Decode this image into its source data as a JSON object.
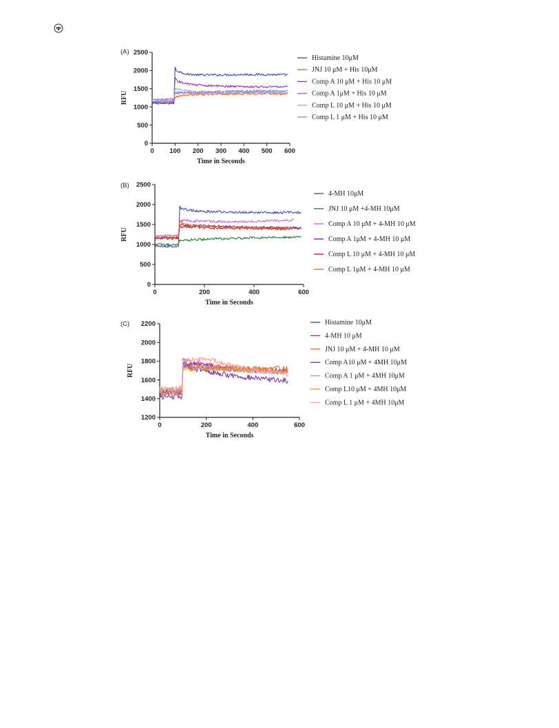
{
  "page": {
    "icon": "circle-page-marker-icon"
  },
  "chart_data": [
    {
      "type": "line",
      "panel_label": "(A)",
      "xlabel": "Time in Seconds",
      "ylabel": "RFU",
      "xlim": [
        0,
        600
      ],
      "ylim": [
        0,
        2500
      ],
      "xticks": [
        "0",
        "100",
        "200",
        "300",
        "400",
        "500",
        "600"
      ],
      "yticks": [
        "0",
        "500",
        "1000",
        "1500",
        "2000",
        "2500"
      ],
      "grid": false,
      "legend_position": "right",
      "series": [
        {
          "name": "Histamine 10μM",
          "color": "#3a4fa8",
          "x": [
            0,
            95,
            100,
            105,
            150,
            200,
            300,
            400,
            500,
            590
          ],
          "y": [
            1100,
            1100,
            2080,
            2000,
            1900,
            1880,
            1880,
            1890,
            1890,
            1880
          ]
        },
        {
          "name": "JNJ 10 μM + His 10μM",
          "color": "#f06a1d",
          "x": [
            0,
            95,
            100,
            150,
            200,
            300,
            400,
            500,
            590
          ],
          "y": [
            1150,
            1160,
            1280,
            1320,
            1340,
            1350,
            1360,
            1370,
            1350
          ]
        },
        {
          "name": "Comp A 10 μM + His 10 μM",
          "color": "#9b3aa8",
          "x": [
            0,
            95,
            100,
            110,
            150,
            200,
            300,
            400,
            500,
            590
          ],
          "y": [
            1110,
            1120,
            1820,
            1700,
            1640,
            1600,
            1570,
            1560,
            1550,
            1560
          ]
        },
        {
          "name": "Comp A 1μM + His 10 μM",
          "color": "#d24fa8",
          "x": [
            0,
            95,
            100,
            150,
            200,
            300,
            400,
            500,
            590
          ],
          "y": [
            1200,
            1210,
            1380,
            1390,
            1400,
            1420,
            1430,
            1440,
            1440
          ]
        },
        {
          "name": "Comp L 10 μM + His 10 μM",
          "color": "#7fb8e6",
          "x": [
            0,
            95,
            100,
            150,
            200,
            300,
            400,
            500,
            590
          ],
          "y": [
            1170,
            1180,
            1520,
            1450,
            1420,
            1410,
            1420,
            1420,
            1430
          ]
        },
        {
          "name": "Comp L 1 μM + His 10 μM",
          "color": "#8f8fd0",
          "x": [
            0,
            95,
            100,
            150,
            200,
            300,
            400,
            500,
            590
          ],
          "y": [
            1140,
            1150,
            1400,
            1390,
            1380,
            1380,
            1390,
            1390,
            1390
          ]
        }
      ]
    },
    {
      "type": "line",
      "panel_label": "(B)",
      "xlabel": "Time in Seconds",
      "ylabel": "RFU",
      "xlim": [
        0,
        600
      ],
      "ylim": [
        0,
        2500
      ],
      "xticks": [
        "0",
        "200",
        "400",
        "600"
      ],
      "yticks": [
        "0",
        "500",
        "1000",
        "1500",
        "2000",
        "2500"
      ],
      "grid": false,
      "legend_position": "right",
      "series": [
        {
          "name": "4-MH 10μM",
          "color": "#3a4fa8",
          "x": [
            0,
            95,
            100,
            105,
            150,
            200,
            300,
            400,
            500,
            590
          ],
          "y": [
            970,
            950,
            1990,
            1900,
            1850,
            1830,
            1810,
            1800,
            1800,
            1800
          ]
        },
        {
          "name": "JNJ 10 μM +4-MH 10μM",
          "color": "#2e7d3a",
          "x": [
            0,
            95,
            100,
            150,
            200,
            300,
            400,
            500,
            590
          ],
          "y": [
            1000,
            1000,
            1100,
            1120,
            1130,
            1150,
            1170,
            1180,
            1190
          ]
        },
        {
          "name": "Comp A 10 μM + 4-MH 10 μM",
          "color": "#c06ad0",
          "x": [
            0,
            95,
            100,
            150,
            200,
            300,
            400,
            500,
            560
          ],
          "y": [
            1220,
            1230,
            1600,
            1590,
            1580,
            1570,
            1580,
            1600,
            1610
          ]
        },
        {
          "name": "Comp A 1μM + 4-MH 10 μM",
          "color": "#6f2a9e",
          "x": [
            0,
            95,
            100,
            150,
            200,
            300,
            400,
            500,
            590
          ],
          "y": [
            1160,
            1170,
            1500,
            1480,
            1470,
            1450,
            1430,
            1420,
            1410
          ]
        },
        {
          "name": "Comp L 10 μM + 4-MH 10 μM",
          "color": "#b3222a",
          "x": [
            0,
            95,
            100,
            150,
            200,
            300,
            400,
            500,
            590
          ],
          "y": [
            1150,
            1160,
            1450,
            1440,
            1420,
            1410,
            1400,
            1390,
            1400
          ]
        },
        {
          "name": "Comp L 1μM + 4-MH 10 μM",
          "color": "#f06a1d",
          "x": [
            0,
            95,
            100,
            150,
            200,
            300,
            400,
            500,
            560
          ],
          "y": [
            1180,
            1190,
            1550,
            1480,
            1450,
            1430,
            1420,
            1410,
            1410
          ]
        }
      ]
    },
    {
      "type": "line",
      "panel_label": "(C)",
      "xlabel": "Time in Seconds",
      "ylabel": "RFU",
      "xlim": [
        0,
        600
      ],
      "ylim": [
        1200,
        2200
      ],
      "xticks": [
        "0",
        "200",
        "400",
        "600"
      ],
      "yticks": [
        "1200",
        "1400",
        "1600",
        "1800",
        "2000",
        "2200"
      ],
      "grid": false,
      "legend_position": "right",
      "series": [
        {
          "name": "Histamine 10μM",
          "color": "#3a4fa8",
          "x": [
            0,
            95,
            100,
            150,
            200,
            300,
            400,
            500,
            550
          ],
          "y": [
            1460,
            1460,
            1780,
            1760,
            1740,
            1720,
            1700,
            1700,
            1700
          ]
        },
        {
          "name": "4-MH 10 μM",
          "color": "#d0207a",
          "x": [
            0,
            95,
            100,
            150,
            200,
            300,
            400,
            500,
            550
          ],
          "y": [
            1470,
            1470,
            1820,
            1780,
            1760,
            1730,
            1710,
            1690,
            1680
          ]
        },
        {
          "name": "JNJ 10 μM + 4-MH 10 μM",
          "color": "#e8741c",
          "x": [
            0,
            95,
            100,
            150,
            200,
            300,
            400,
            500,
            550
          ],
          "y": [
            1500,
            1500,
            1760,
            1740,
            1730,
            1720,
            1720,
            1720,
            1720
          ]
        },
        {
          "name": "Comp A10 μM + 4MH 10μM",
          "color": "#7a3aa8",
          "x": [
            0,
            95,
            100,
            150,
            200,
            300,
            400,
            500,
            550
          ],
          "y": [
            1420,
            1420,
            1760,
            1720,
            1690,
            1650,
            1620,
            1600,
            1590
          ]
        },
        {
          "name": "Comp A 1 μM + 4MH 10μM",
          "color": "#c090c8",
          "x": [
            0,
            95,
            100,
            150,
            200,
            300,
            400,
            500,
            550
          ],
          "y": [
            1480,
            1480,
            1750,
            1740,
            1730,
            1710,
            1700,
            1690,
            1690
          ]
        },
        {
          "name": "Comp L10 μM + 4MH 10μM",
          "color": "#f08c28",
          "x": [
            0,
            95,
            100,
            150,
            200,
            300,
            400,
            500,
            550
          ],
          "y": [
            1450,
            1450,
            1720,
            1720,
            1730,
            1720,
            1700,
            1690,
            1690
          ]
        },
        {
          "name": "Comp L 1 μM + 4MH 10μM",
          "color": "#f4a8a0",
          "x": [
            0,
            95,
            100,
            150,
            200,
            300,
            400,
            500,
            550
          ],
          "y": [
            1510,
            1510,
            1800,
            1820,
            1830,
            1760,
            1700,
            1680,
            1660
          ]
        }
      ]
    }
  ]
}
